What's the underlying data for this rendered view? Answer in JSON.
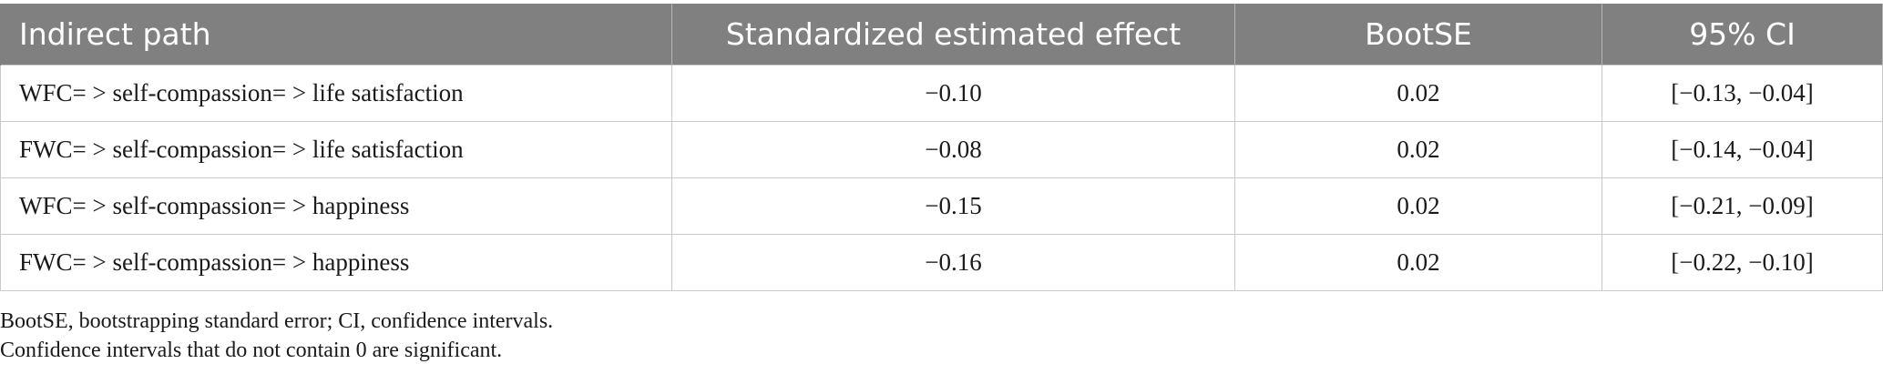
{
  "table": {
    "headers": [
      "Indirect path",
      "Standardized estimated effect",
      "BootSE",
      "95% CI"
    ],
    "rows": [
      [
        "WFC= > self-compassion= > life satisfaction",
        "−0.10",
        "0.02",
        "[−0.13, −0.04]"
      ],
      [
        "FWC= > self-compassion= > life satisfaction",
        "−0.08",
        "0.02",
        "[−0.14, −0.04]"
      ],
      [
        "WFC= > self-compassion= > happiness",
        "−0.15",
        "0.02",
        "[−0.21, −0.09]"
      ],
      [
        "FWC= > self-compassion= > happiness",
        "−0.16",
        "0.02",
        "[−0.22, −0.10]"
      ]
    ]
  },
  "notes": [
    "BootSE, bootstrapping standard error; CI, confidence intervals.",
    "Confidence intervals that do not contain 0 are significant."
  ]
}
